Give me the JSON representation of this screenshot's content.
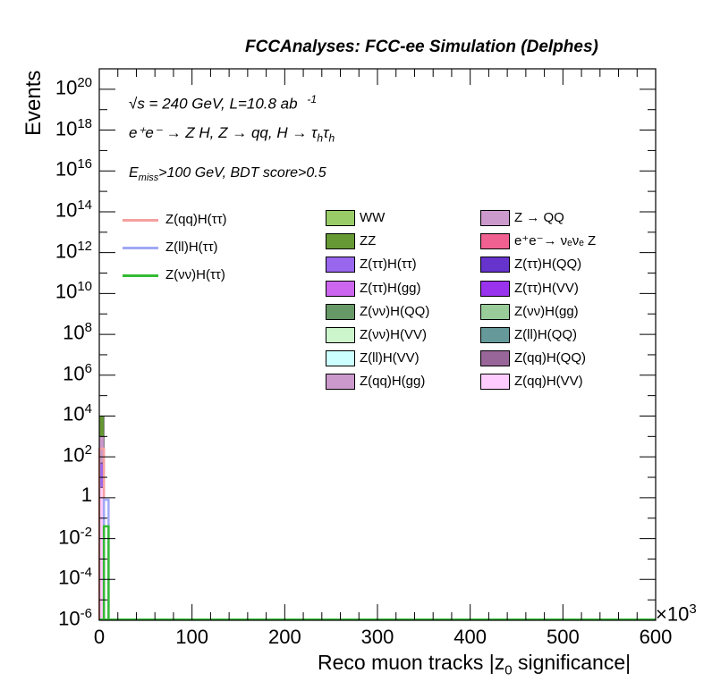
{
  "header": {
    "title": "FCCAnalyses: FCC-ee Simulation (Delphes)"
  },
  "annotations": {
    "line1": "√s = 240 GeV, L=10.8 ab",
    "line1_sup": "-1",
    "line2": "e⁺e⁻ → Z H, Z → qq, H → τ",
    "line2_sub1": "h",
    "line2_tau": "τ",
    "line2_sub2": "h",
    "line3_pre": "E",
    "line3_sub": "miss",
    "line3_post": ">100 GeV, BDT score>0.5"
  },
  "axes": {
    "ylabel": "Events",
    "xlabel": "Reco muon tracks |z",
    "xlabel_sub": "0",
    "xlabel_post": " significance|",
    "x_multiplier": "×10",
    "x_multiplier_exp": "3",
    "x_ticks": [
      "0",
      "100",
      "200",
      "300",
      "400",
      "500",
      "600"
    ],
    "y_ticks": [
      {
        "base": "10",
        "exp": "20"
      },
      {
        "base": "10",
        "exp": "18"
      },
      {
        "base": "10",
        "exp": "16"
      },
      {
        "base": "10",
        "exp": "14"
      },
      {
        "base": "10",
        "exp": "12"
      },
      {
        "base": "10",
        "exp": "10"
      },
      {
        "base": "10",
        "exp": "8"
      },
      {
        "base": "10",
        "exp": "6"
      },
      {
        "base": "10",
        "exp": "4"
      },
      {
        "base": "10",
        "exp": "2"
      },
      {
        "base": "1",
        "exp": ""
      },
      {
        "base": "10",
        "exp": "-2"
      },
      {
        "base": "10",
        "exp": "-4"
      },
      {
        "base": "10",
        "exp": "-6"
      }
    ]
  },
  "legend": {
    "signals": [
      {
        "label": "Z(qq)H(ττ)",
        "color": "#f5a0a0"
      },
      {
        "label": "Z(ll)H(ττ)",
        "color": "#a0a8f5"
      },
      {
        "label": "Z(νν)H(ττ)",
        "color": "#33bb33"
      }
    ],
    "backgrounds": [
      {
        "label": "WW",
        "color": "#99cc66"
      },
      {
        "label": "Z → QQ",
        "color": "#cc99cc"
      },
      {
        "label": "ZZ",
        "color": "#669933"
      },
      {
        "label": "e⁺e⁻→ νₑνₑ Z",
        "color": "#f06090"
      },
      {
        "label": "Z(ττ)H(ττ)",
        "color": "#9966ee"
      },
      {
        "label": "Z(ττ)H(QQ)",
        "color": "#6633cc"
      },
      {
        "label": "Z(ττ)H(gg)",
        "color": "#cc66ee"
      },
      {
        "label": "Z(ττ)H(VV)",
        "color": "#9933ee"
      },
      {
        "label": "Z(νν)H(QQ)",
        "color": "#669966"
      },
      {
        "label": "Z(νν)H(gg)",
        "color": "#99cc99"
      },
      {
        "label": "Z(νν)H(VV)",
        "color": "#ccf5cc"
      },
      {
        "label": "Z(ll)H(QQ)",
        "color": "#669999"
      },
      {
        "label": "Z(ll)H(VV)",
        "color": "#ccffff"
      },
      {
        "label": "Z(qq)H(QQ)",
        "color": "#996699"
      },
      {
        "label": "Z(qq)H(gg)",
        "color": "#cc99cc"
      },
      {
        "label": "Z(qq)H(VV)",
        "color": "#ffccff"
      }
    ]
  },
  "chart_data": {
    "type": "bar",
    "title": "FCCAnalyses: FCC-ee Simulation (Delphes)",
    "xlabel": "Reco muon tracks |z0 significance|",
    "ylabel": "Events",
    "x_scale_factor": 1000,
    "xlim": [
      0,
      600
    ],
    "ylim_log10": [
      -6,
      21
    ],
    "y_scale": "log",
    "grid": false,
    "legend_position": "top",
    "stacked_background": {
      "x_range": [
        0,
        5
      ],
      "components": [
        {
          "name": "ZZ",
          "top_log10": 4.0
        },
        {
          "name": "Z(qq)H(gg)",
          "top_log10": 3.0
        },
        {
          "name": "Z(ττ)H(ττ)",
          "top_log10": 1.7
        },
        {
          "name": "Z(qq)H(VV)",
          "top_log10": 0.5
        }
      ]
    },
    "series": [
      {
        "name": "Z(qq)H(ττ)",
        "x_range": [
          0,
          5
        ],
        "value_log10": 2.4
      },
      {
        "name": "Z(ll)H(ττ)",
        "x_range": [
          5,
          10
        ],
        "value_log10": -0.1
      },
      {
        "name": "Z(νν)H(ττ)",
        "x_range": [
          5,
          10
        ],
        "value_log10": -1.4
      }
    ]
  }
}
